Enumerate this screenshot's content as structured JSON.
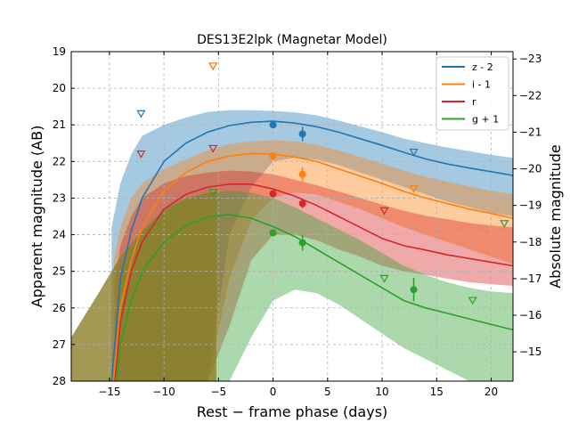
{
  "chart_data": {
    "type": "line",
    "title": "DES13E2lpk (Magnetar Model)",
    "xlabel": "Rest − frame phase (days)",
    "ylabel": "Apparent magnitude (AB)",
    "ylabel_right": "Absolute magnitude",
    "xlim": [
      -18.5,
      22
    ],
    "ylim": [
      28,
      19
    ],
    "ylim_right": [
      -14.2,
      -23.2
    ],
    "grid": true,
    "legend_position": "top-right",
    "x_ticks": [
      -15,
      -10,
      -5,
      0,
      5,
      10,
      15,
      20
    ],
    "x_tick_labels": [
      "−15",
      "−10",
      "−5",
      "0",
      "5",
      "10",
      "15",
      "20"
    ],
    "y_ticks": [
      19,
      20,
      21,
      22,
      23,
      24,
      25,
      26,
      27,
      28
    ],
    "y_tick_labels": [
      "19",
      "20",
      "21",
      "22",
      "23",
      "24",
      "25",
      "26",
      "27",
      "28"
    ],
    "y_right_ticks": [
      -23,
      -22,
      -21,
      -20,
      -19,
      -18,
      -17,
      -16,
      -15
    ],
    "y_right_tick_labels": [
      "−23",
      "−22",
      "−21",
      "−20",
      "−19",
      "−18",
      "−17",
      "−16",
      "−15"
    ],
    "series": [
      {
        "name": "z - 2",
        "color": "#1f77b4",
        "model_x": [
          -14.8,
          -14,
          -13,
          -12,
          -10,
          -8,
          -6,
          -4,
          -2,
          0,
          2,
          4,
          6,
          8,
          10,
          12,
          14,
          16,
          18,
          20,
          22
        ],
        "model_y": [
          28,
          25.2,
          23.9,
          23.0,
          22.0,
          21.5,
          21.2,
          21.02,
          20.93,
          20.9,
          20.95,
          21.05,
          21.2,
          21.38,
          21.56,
          21.75,
          21.93,
          22.07,
          22.18,
          22.28,
          22.38
        ],
        "upper_y": [
          23.8,
          22.6,
          21.8,
          21.3,
          21.0,
          20.8,
          20.65,
          20.6,
          20.6,
          20.62,
          20.66,
          20.74,
          20.88,
          21.04,
          21.2,
          21.38,
          21.5,
          21.62,
          21.72,
          21.82,
          21.9
        ],
        "lower_y": [
          28,
          28,
          28,
          28,
          28,
          28,
          28,
          24.0,
          22.7,
          22.0,
          21.9,
          21.95,
          22.1,
          22.3,
          22.5,
          22.7,
          22.9,
          23.1,
          23.25,
          23.4,
          23.5
        ],
        "points": [
          {
            "x": 0,
            "y": 21.0,
            "err": 0.08
          },
          {
            "x": 2.7,
            "y": 21.25,
            "err": 0.2
          }
        ],
        "upper_limits": [
          {
            "x": -12.1,
            "y": 20.7
          },
          {
            "x": -5.5,
            "y": 19.4
          },
          {
            "x": 12.9,
            "y": 21.75
          }
        ]
      },
      {
        "name": "i - 1",
        "color": "#ff7f0e",
        "model_x": [
          -14.6,
          -14,
          -13,
          -12,
          -10,
          -8,
          -6,
          -4,
          -2,
          0,
          2,
          4,
          6,
          8,
          10,
          12,
          14,
          16,
          18,
          20,
          22
        ],
        "model_y": [
          28,
          26.0,
          24.7,
          23.8,
          22.8,
          22.3,
          22.0,
          21.85,
          21.78,
          21.8,
          21.88,
          22.0,
          22.2,
          22.4,
          22.6,
          22.82,
          23.0,
          23.15,
          23.3,
          23.42,
          23.55
        ],
        "upper_y": [
          24.7,
          23.8,
          23.0,
          22.6,
          22.2,
          21.95,
          21.7,
          21.52,
          21.45,
          21.42,
          21.45,
          21.55,
          21.7,
          21.88,
          22.06,
          22.25,
          22.42,
          22.55,
          22.68,
          22.8,
          22.9
        ],
        "lower_y": [
          28,
          28,
          28,
          28,
          28,
          28,
          28,
          25.2,
          23.6,
          23.0,
          22.85,
          22.9,
          23.1,
          23.3,
          23.55,
          23.8,
          24.0,
          24.2,
          24.4,
          24.6,
          24.8
        ],
        "points": [
          {
            "x": 0,
            "y": 21.85,
            "err": 0.06
          },
          {
            "x": 2.7,
            "y": 22.35,
            "err": 0.2
          }
        ],
        "upper_limits": [
          {
            "x": -5.5,
            "y": 19.4
          },
          {
            "x": 12.9,
            "y": 22.75
          }
        ]
      },
      {
        "name": "r",
        "color": "#d62728",
        "model_x": [
          -14.5,
          -14,
          -13,
          -12,
          -10,
          -8,
          -6,
          -4,
          -2,
          0,
          2,
          4,
          6,
          8,
          10,
          12,
          14,
          16,
          18,
          20,
          22
        ],
        "model_y": [
          28,
          26.4,
          25.0,
          24.2,
          23.3,
          22.9,
          22.7,
          22.62,
          22.62,
          22.75,
          22.95,
          23.2,
          23.5,
          23.8,
          24.1,
          24.3,
          24.42,
          24.55,
          24.65,
          24.75,
          24.85
        ],
        "upper_y": [
          25.3,
          24.3,
          23.5,
          23.0,
          22.6,
          22.4,
          22.3,
          22.25,
          22.28,
          22.35,
          22.5,
          22.65,
          22.82,
          23.0,
          23.18,
          23.35,
          23.48,
          23.58,
          23.68,
          23.75,
          23.8
        ],
        "lower_y": [
          28,
          28,
          28,
          28,
          28,
          28,
          28,
          26.5,
          24.7,
          24.0,
          24.0,
          24.15,
          24.4,
          24.6,
          24.85,
          25.0,
          25.1,
          25.2,
          25.3,
          25.35,
          25.4
        ],
        "points": [
          {
            "x": 0,
            "y": 22.88,
            "err": 0.06
          },
          {
            "x": 2.7,
            "y": 23.15,
            "err": 0.12
          }
        ],
        "upper_limits": [
          {
            "x": -12.1,
            "y": 21.8
          },
          {
            "x": -5.5,
            "y": 21.65
          },
          {
            "x": 10.2,
            "y": 23.35
          }
        ]
      },
      {
        "name": "g + 1",
        "color": "#2ca02c",
        "model_x": [
          -14.3,
          -14,
          -13,
          -12,
          -10,
          -8,
          -6,
          -4,
          -2,
          0,
          2,
          4,
          6,
          8,
          10,
          12,
          14,
          16,
          18,
          20,
          22
        ],
        "model_y": [
          28,
          27.0,
          25.8,
          25.0,
          24.2,
          23.75,
          23.52,
          23.45,
          23.55,
          23.78,
          24.05,
          24.4,
          24.75,
          25.1,
          25.45,
          25.8,
          26.0,
          26.15,
          26.3,
          26.45,
          26.6
        ],
        "upper_y": [
          26.0,
          25.2,
          24.4,
          23.9,
          23.3,
          23.0,
          22.85,
          22.8,
          22.85,
          23.0,
          23.25,
          23.55,
          23.85,
          24.15,
          24.5,
          24.85,
          25.1,
          25.3,
          25.45,
          25.55,
          25.6
        ],
        "lower_y": [
          28,
          28,
          28,
          28,
          28,
          28,
          28,
          28,
          26.8,
          25.8,
          25.5,
          25.6,
          25.9,
          26.3,
          26.7,
          27.1,
          27.4,
          27.7,
          28,
          28,
          28
        ],
        "points": [
          {
            "x": 0,
            "y": 23.95,
            "err": 0.06
          },
          {
            "x": 2.7,
            "y": 24.22,
            "err": 0.22
          },
          {
            "x": 12.9,
            "y": 25.5,
            "err": 0.32
          }
        ],
        "upper_limits": [
          {
            "x": -5.5,
            "y": 22.85
          },
          {
            "x": 10.2,
            "y": 25.2
          },
          {
            "x": 18.3,
            "y": 25.8
          },
          {
            "x": 21.2,
            "y": 23.7
          }
        ]
      }
    ],
    "olive_overlay": {
      "color": "#8c7f2a",
      "upper_x": [
        -18.5,
        -16,
        -14,
        -12,
        -10,
        -8,
        -6,
        -5.2
      ],
      "upper_y": [
        26.8,
        25.6,
        24.6,
        23.9,
        23.35,
        23.05,
        22.85,
        22.85
      ],
      "lower_y": 28
    }
  }
}
